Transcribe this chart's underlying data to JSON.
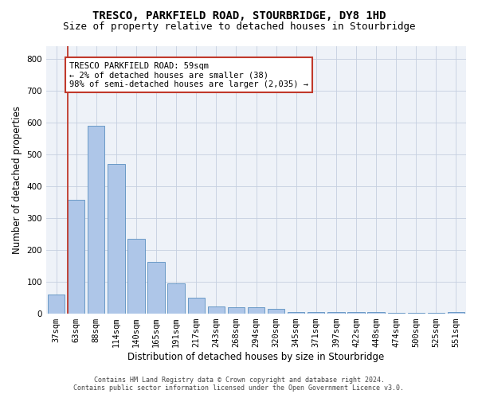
{
  "title": "TRESCO, PARKFIELD ROAD, STOURBRIDGE, DY8 1HD",
  "subtitle": "Size of property relative to detached houses in Stourbridge",
  "xlabel": "Distribution of detached houses by size in Stourbridge",
  "ylabel": "Number of detached properties",
  "categories": [
    "37sqm",
    "63sqm",
    "88sqm",
    "114sqm",
    "140sqm",
    "165sqm",
    "191sqm",
    "217sqm",
    "243sqm",
    "268sqm",
    "294sqm",
    "320sqm",
    "345sqm",
    "371sqm",
    "397sqm",
    "422sqm",
    "448sqm",
    "474sqm",
    "500sqm",
    "525sqm",
    "551sqm"
  ],
  "values": [
    60,
    358,
    590,
    470,
    235,
    163,
    95,
    50,
    23,
    20,
    20,
    15,
    5,
    5,
    5,
    5,
    5,
    2,
    2,
    2,
    5
  ],
  "bar_color": "#aec6e8",
  "bar_edge_color": "#5a8fc0",
  "annotation_text": "TRESCO PARKFIELD ROAD: 59sqm\n← 2% of detached houses are smaller (38)\n98% of semi-detached houses are larger (2,035) →",
  "annotation_box_color": "#c0392b",
  "footer_line1": "Contains HM Land Registry data © Crown copyright and database right 2024.",
  "footer_line2": "Contains public sector information licensed under the Open Government Licence v3.0.",
  "bg_color": "#eef2f8",
  "ylim": [
    0,
    840
  ],
  "title_fontsize": 10,
  "subtitle_fontsize": 9,
  "tick_fontsize": 7.5,
  "ylabel_fontsize": 8.5,
  "xlabel_fontsize": 8.5,
  "footer_fontsize": 6,
  "ann_fontsize": 7.5
}
